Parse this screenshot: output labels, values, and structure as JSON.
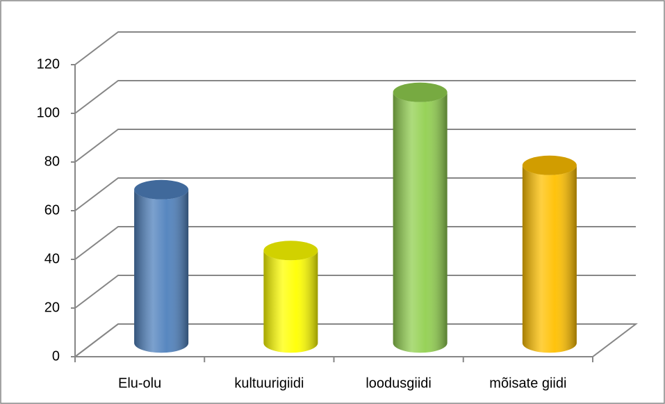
{
  "chart_data": {
    "type": "bar",
    "style": "3d-cylinder",
    "categories": [
      "Elu-olu",
      "kultuurigiidi",
      "loodusgiidi",
      "mõisate giidi"
    ],
    "values": [
      63,
      38,
      103,
      73
    ],
    "colors": [
      "#4f81bd",
      "#ffff00",
      "#92d050",
      "#ffc000"
    ],
    "ylim": [
      0,
      120
    ],
    "yticks": [
      0,
      20,
      40,
      60,
      80,
      100,
      120
    ],
    "grid": true
  }
}
